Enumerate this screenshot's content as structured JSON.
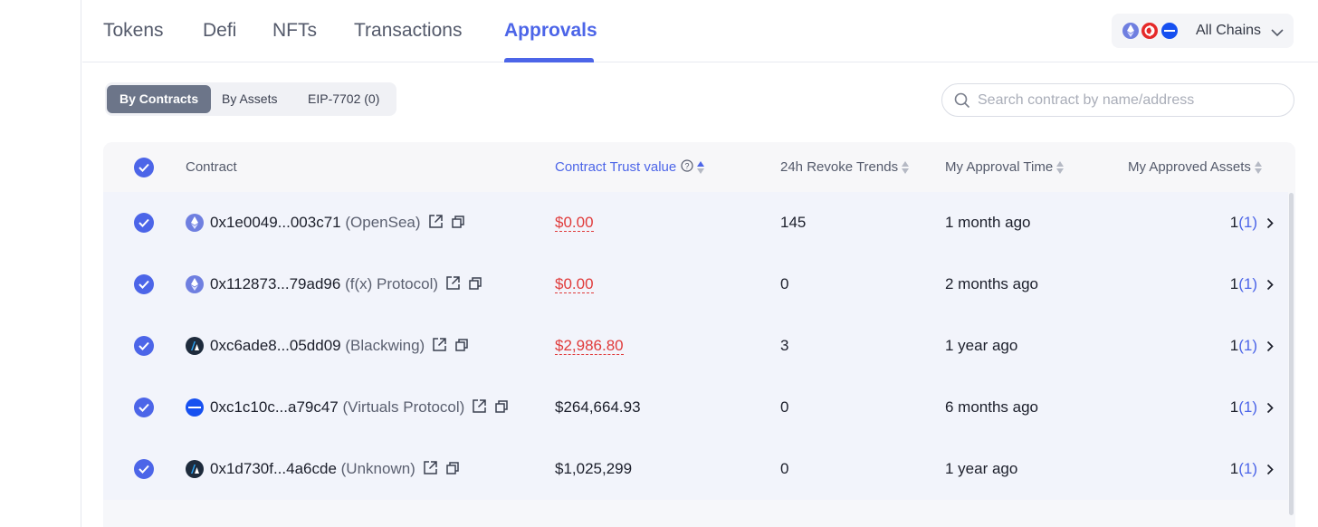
{
  "tabs": [
    {
      "label": "Tokens"
    },
    {
      "label": "Defi"
    },
    {
      "label": "NFTs"
    },
    {
      "label": "Transactions"
    },
    {
      "label": "Approvals"
    }
  ],
  "active_tab": "Approvals",
  "chain_selector": {
    "label": "All Chains"
  },
  "segments": [
    {
      "label": "By Contracts"
    },
    {
      "label": "By Assets"
    },
    {
      "label": "EIP-7702 (0)"
    }
  ],
  "active_segment": "By Contracts",
  "search": {
    "placeholder": "Search contract by name/address",
    "value": ""
  },
  "table": {
    "headers": {
      "contract": "Contract",
      "trust": "Contract Trust value",
      "revoke": "24h Revoke Trends",
      "approval_time": "My Approval Time",
      "assets": "My Approved Assets"
    },
    "rows": [
      {
        "address": "0x1e0049...003c71",
        "name": "(OpenSea)",
        "icon": "ethereum-icon",
        "trust": "$0.00",
        "trust_risk": true,
        "revoke": "145",
        "time": "1 month ago",
        "assets": "1",
        "assets_link": "(1)"
      },
      {
        "address": "0x112873...79ad96",
        "name": "(f(x) Protocol)",
        "icon": "ethereum-icon",
        "trust": "$0.00",
        "trust_risk": true,
        "revoke": "0",
        "time": "2 months ago",
        "assets": "1",
        "assets_link": "(1)"
      },
      {
        "address": "0xc6ade8...05dd09",
        "name": "(Blackwing)",
        "icon": "arbitrum-icon",
        "trust": "$2,986.80",
        "trust_risk": true,
        "revoke": "3",
        "time": "1 year ago",
        "assets": "1",
        "assets_link": "(1)"
      },
      {
        "address": "0xc1c10c...a79c47",
        "name": "(Virtuals Protocol)",
        "icon": "base-icon",
        "trust": "$264,664.93",
        "trust_risk": false,
        "revoke": "0",
        "time": "6 months ago",
        "assets": "1",
        "assets_link": "(1)"
      },
      {
        "address": "0x1d730f...4a6cde",
        "name": "(Unknown)",
        "icon": "arbitrum-icon",
        "trust": "$1,025,299",
        "trust_risk": false,
        "revoke": "0",
        "time": "1 year ago",
        "assets": "1",
        "assets_link": "(1)"
      }
    ]
  },
  "colors": {
    "accent": "#4c65e8",
    "risk": "#e03b3b",
    "ethereum": "#6f7fe0",
    "base": "#1650f0",
    "optimism": "#e52a2a"
  }
}
